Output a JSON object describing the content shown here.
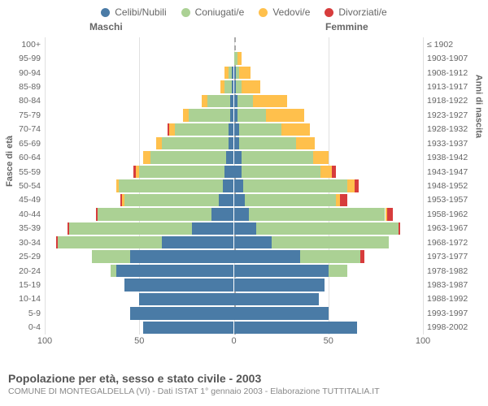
{
  "legend": [
    {
      "label": "Celibi/Nubili",
      "color": "#4a7ba6"
    },
    {
      "label": "Coniugati/e",
      "color": "#abd194"
    },
    {
      "label": "Vedovi/e",
      "color": "#ffc04c"
    },
    {
      "label": "Divorziati/e",
      "color": "#d73c3c"
    }
  ],
  "headers": {
    "male": "Maschi",
    "female": "Femmine"
  },
  "axis": {
    "left_title": "Fasce di età",
    "right_title": "Anni di nascita",
    "xlim": 100,
    "xticks": [
      100,
      50,
      0,
      50,
      100
    ]
  },
  "title": "Popolazione per età, sesso e stato civile - 2003",
  "subtitle": "COMUNE DI MONTEGALDELLA (VI) - Dati ISTAT 1° gennaio 2003 - Elaborazione TUTTITALIA.IT",
  "colors": {
    "celibi": "#4a7ba6",
    "coniugati": "#abd194",
    "vedovi": "#ffc04c",
    "divorziati": "#d73c3c",
    "grid": "#e0e0e0",
    "centerline": "#aaaaaa",
    "text": "#666666",
    "bg": "#ffffff"
  },
  "rows": [
    {
      "age": "100+",
      "birth": "≤ 1902",
      "m": {
        "c": 0,
        "co": 0,
        "v": 0,
        "d": 0
      },
      "f": {
        "c": 0,
        "co": 0,
        "v": 0,
        "d": 0
      }
    },
    {
      "age": "95-99",
      "birth": "1903-1907",
      "m": {
        "c": 0,
        "co": 0,
        "v": 0,
        "d": 0
      },
      "f": {
        "c": 0,
        "co": 2,
        "v": 2,
        "d": 0
      }
    },
    {
      "age": "90-94",
      "birth": "1908-1912",
      "m": {
        "c": 1,
        "co": 2,
        "v": 2,
        "d": 0
      },
      "f": {
        "c": 1,
        "co": 2,
        "v": 6,
        "d": 0
      }
    },
    {
      "age": "85-89",
      "birth": "1913-1917",
      "m": {
        "c": 1,
        "co": 4,
        "v": 2,
        "d": 0
      },
      "f": {
        "c": 1,
        "co": 3,
        "v": 10,
        "d": 0
      }
    },
    {
      "age": "80-84",
      "birth": "1918-1922",
      "m": {
        "c": 2,
        "co": 12,
        "v": 3,
        "d": 0
      },
      "f": {
        "c": 2,
        "co": 8,
        "v": 18,
        "d": 0
      }
    },
    {
      "age": "75-79",
      "birth": "1923-1927",
      "m": {
        "c": 2,
        "co": 22,
        "v": 3,
        "d": 0
      },
      "f": {
        "c": 2,
        "co": 15,
        "v": 20,
        "d": 0
      }
    },
    {
      "age": "70-74",
      "birth": "1928-1932",
      "m": {
        "c": 3,
        "co": 28,
        "v": 3,
        "d": 1
      },
      "f": {
        "c": 3,
        "co": 22,
        "v": 15,
        "d": 0
      }
    },
    {
      "age": "65-69",
      "birth": "1933-1937",
      "m": {
        "c": 3,
        "co": 35,
        "v": 3,
        "d": 0
      },
      "f": {
        "c": 3,
        "co": 30,
        "v": 10,
        "d": 0
      }
    },
    {
      "age": "60-64",
      "birth": "1938-1942",
      "m": {
        "c": 4,
        "co": 40,
        "v": 4,
        "d": 0
      },
      "f": {
        "c": 4,
        "co": 38,
        "v": 8,
        "d": 0
      }
    },
    {
      "age": "55-59",
      "birth": "1943-1947",
      "m": {
        "c": 5,
        "co": 45,
        "v": 2,
        "d": 1
      },
      "f": {
        "c": 4,
        "co": 42,
        "v": 6,
        "d": 2
      }
    },
    {
      "age": "50-54",
      "birth": "1948-1952",
      "m": {
        "c": 6,
        "co": 55,
        "v": 1,
        "d": 0
      },
      "f": {
        "c": 5,
        "co": 55,
        "v": 4,
        "d": 2
      }
    },
    {
      "age": "45-49",
      "birth": "1953-1957",
      "m": {
        "c": 8,
        "co": 50,
        "v": 1,
        "d": 1
      },
      "f": {
        "c": 6,
        "co": 48,
        "v": 2,
        "d": 4
      }
    },
    {
      "age": "40-44",
      "birth": "1958-1962",
      "m": {
        "c": 12,
        "co": 60,
        "v": 0,
        "d": 1
      },
      "f": {
        "c": 8,
        "co": 72,
        "v": 1,
        "d": 3
      }
    },
    {
      "age": "35-39",
      "birth": "1963-1967",
      "m": {
        "c": 22,
        "co": 65,
        "v": 0,
        "d": 1
      },
      "f": {
        "c": 12,
        "co": 75,
        "v": 0,
        "d": 1
      }
    },
    {
      "age": "30-34",
      "birth": "1968-1972",
      "m": {
        "c": 38,
        "co": 55,
        "v": 0,
        "d": 1
      },
      "f": {
        "c": 20,
        "co": 62,
        "v": 0,
        "d": 0
      }
    },
    {
      "age": "25-29",
      "birth": "1973-1977",
      "m": {
        "c": 55,
        "co": 20,
        "v": 0,
        "d": 0
      },
      "f": {
        "c": 35,
        "co": 32,
        "v": 0,
        "d": 2
      }
    },
    {
      "age": "20-24",
      "birth": "1978-1982",
      "m": {
        "c": 62,
        "co": 3,
        "v": 0,
        "d": 0
      },
      "f": {
        "c": 50,
        "co": 10,
        "v": 0,
        "d": 0
      }
    },
    {
      "age": "15-19",
      "birth": "1983-1987",
      "m": {
        "c": 58,
        "co": 0,
        "v": 0,
        "d": 0
      },
      "f": {
        "c": 48,
        "co": 0,
        "v": 0,
        "d": 0
      }
    },
    {
      "age": "10-14",
      "birth": "1988-1992",
      "m": {
        "c": 50,
        "co": 0,
        "v": 0,
        "d": 0
      },
      "f": {
        "c": 45,
        "co": 0,
        "v": 0,
        "d": 0
      }
    },
    {
      "age": "5-9",
      "birth": "1993-1997",
      "m": {
        "c": 55,
        "co": 0,
        "v": 0,
        "d": 0
      },
      "f": {
        "c": 50,
        "co": 0,
        "v": 0,
        "d": 0
      }
    },
    {
      "age": "0-4",
      "birth": "1998-2002",
      "m": {
        "c": 48,
        "co": 0,
        "v": 0,
        "d": 0
      },
      "f": {
        "c": 65,
        "co": 0,
        "v": 0,
        "d": 0
      }
    }
  ],
  "fontsize": {
    "legend": 12,
    "ticks": 11,
    "title": 14,
    "subtitle": 10.5
  }
}
